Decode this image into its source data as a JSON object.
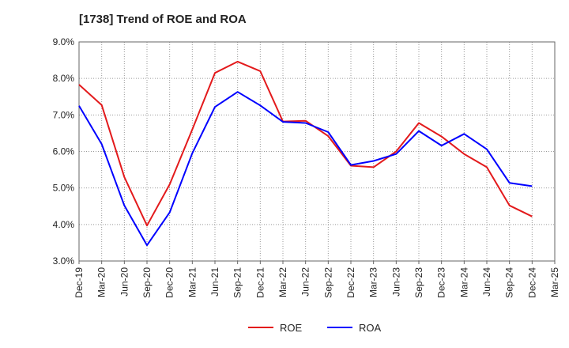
{
  "chart_data": {
    "type": "line",
    "title": "[1738]  Trend of ROE and ROA",
    "xlabel": "",
    "ylabel": "",
    "ylim": [
      3.0,
      9.0
    ],
    "yticks": [
      "3.0%",
      "4.0%",
      "5.0%",
      "6.0%",
      "7.0%",
      "8.0%",
      "9.0%"
    ],
    "categories": [
      "Dec-19",
      "Mar-20",
      "Jun-20",
      "Sep-20",
      "Dec-20",
      "Mar-21",
      "Jun-21",
      "Sep-21",
      "Dec-21",
      "Mar-22",
      "Jun-22",
      "Sep-22",
      "Dec-22",
      "Mar-23",
      "Jun-23",
      "Sep-23",
      "Dec-23",
      "Mar-24",
      "Jun-24",
      "Sep-24",
      "Dec-24",
      "Mar-25"
    ],
    "grid": true,
    "legend_position": "bottom",
    "series": [
      {
        "name": "ROE",
        "color": "#e31a1c",
        "values": [
          7.83,
          7.27,
          5.3,
          3.97,
          5.1,
          6.6,
          8.15,
          8.46,
          8.2,
          6.82,
          6.84,
          6.42,
          5.61,
          5.57,
          6.0,
          6.78,
          6.41,
          5.93,
          5.57,
          4.52,
          4.22,
          null
        ]
      },
      {
        "name": "ROA",
        "color": "#0000ff",
        "values": [
          7.25,
          6.2,
          4.52,
          3.43,
          4.33,
          5.95,
          7.22,
          7.63,
          7.26,
          6.81,
          6.78,
          6.53,
          5.63,
          5.74,
          5.93,
          6.56,
          6.16,
          6.48,
          6.06,
          5.14,
          5.05,
          null
        ]
      }
    ]
  }
}
